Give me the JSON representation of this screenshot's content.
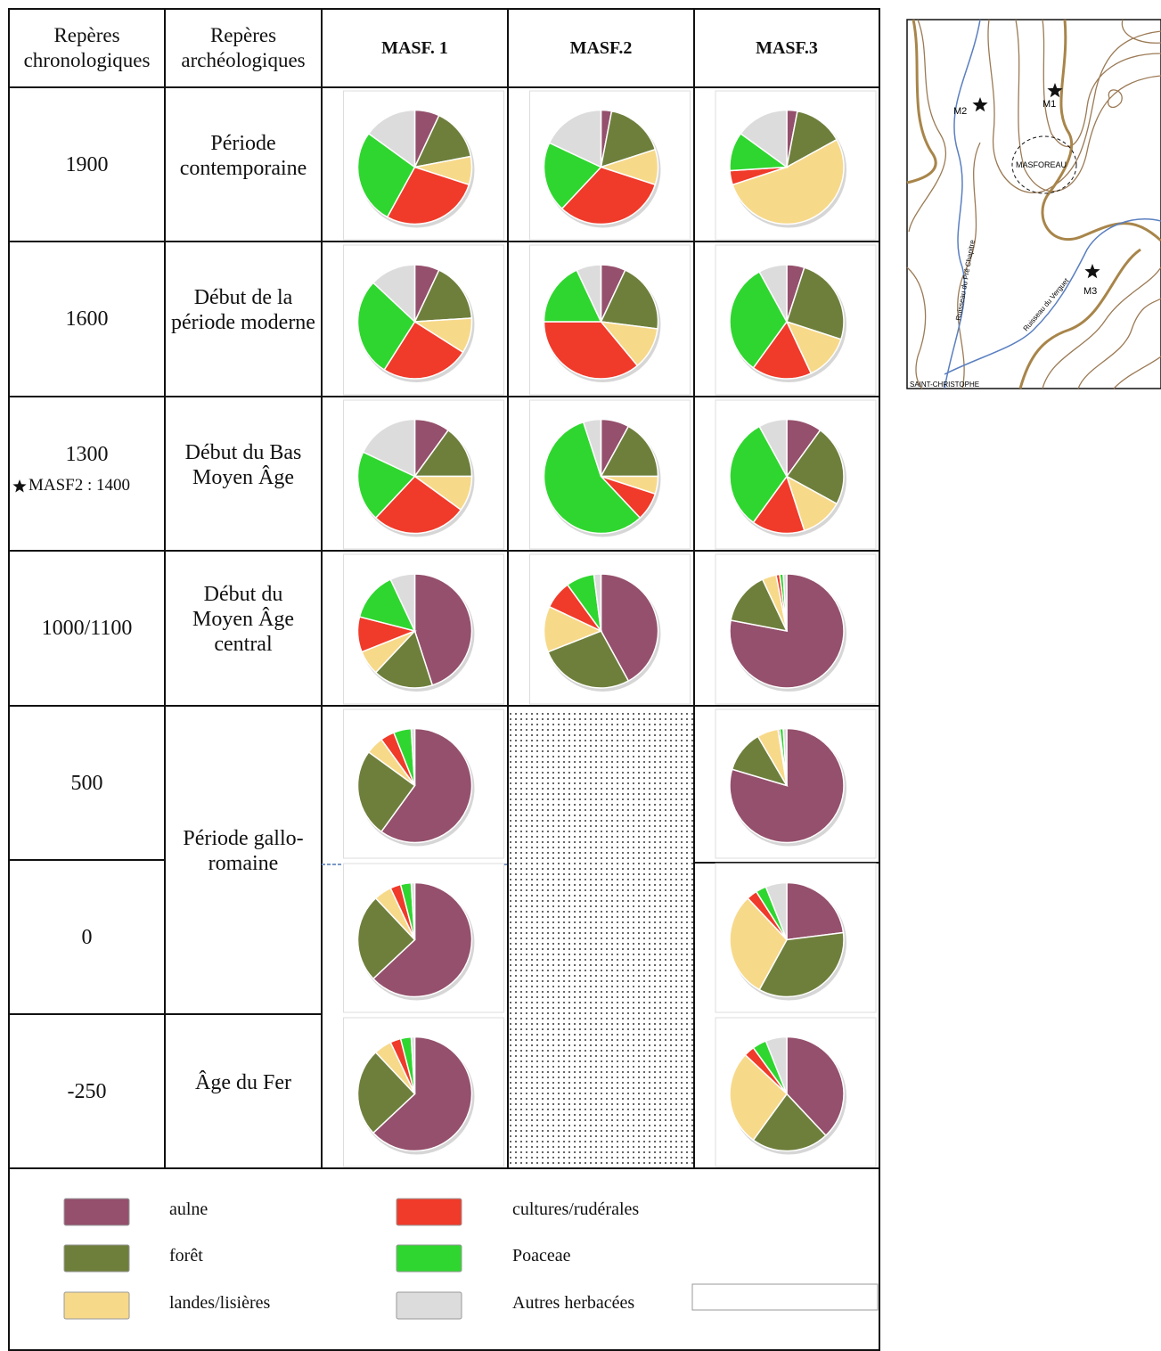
{
  "table": {
    "header": [
      "Repères chronologiques",
      "Repères archéologiques",
      "MASF. 1",
      "MASF.2",
      "MASF.3"
    ],
    "chrono": [
      "1900",
      "1600",
      "1300",
      "1000/1100",
      "500",
      "0",
      "-250"
    ],
    "note": "MASF2 : 1400",
    "periods": [
      "Période contemporaine",
      "Début de la période moderne",
      "Début du Bas Moyen Âge",
      "Début du Moyen Âge central",
      "Période gallo-romaine",
      "Âge du Fer"
    ]
  },
  "legend": [
    {
      "name": "aulne",
      "color": "#94506c"
    },
    {
      "name": "forêt",
      "color": "#6e7f3c"
    },
    {
      "name": "landes/lisières",
      "color": "#f7d98a"
    },
    {
      "name": "cultures/rudérales",
      "color": "#f03a2a"
    },
    {
      "name": "Poaceae",
      "color": "#2fd62f"
    },
    {
      "name": "Autres herbacées",
      "color": "#dcdcdc"
    }
  ],
  "chart_data": [
    {
      "type": "pie",
      "values": [
        7,
        15,
        8,
        28,
        27,
        15
      ]
    },
    {
      "type": "pie",
      "values": [
        3,
        17,
        10,
        32,
        20,
        18
      ]
    },
    {
      "type": "pie",
      "values": [
        3,
        14,
        53,
        4,
        11,
        15
      ]
    },
    {
      "type": "pie",
      "values": [
        7,
        17,
        10,
        25,
        28,
        13
      ]
    },
    {
      "type": "pie",
      "values": [
        7,
        20,
        12,
        36,
        18,
        7
      ]
    },
    {
      "type": "pie",
      "values": [
        5,
        25,
        13,
        17,
        32,
        8
      ]
    },
    {
      "type": "pie",
      "values": [
        10,
        15,
        10,
        27,
        20,
        18
      ]
    },
    {
      "type": "pie",
      "values": [
        8,
        17,
        5,
        8,
        57,
        5
      ]
    },
    {
      "type": "pie",
      "values": [
        10,
        23,
        12,
        15,
        32,
        8
      ]
    },
    {
      "type": "pie",
      "values": [
        45,
        17,
        7,
        10,
        14,
        7
      ]
    },
    {
      "type": "pie",
      "values": [
        42,
        27,
        13,
        8,
        8,
        2
      ]
    },
    {
      "type": "pie",
      "values": [
        78,
        15,
        4,
        1,
        1,
        1
      ]
    },
    {
      "type": "pie",
      "values": [
        60,
        25,
        5,
        4,
        5,
        1
      ]
    },
    {
      "type": "pie",
      "values": [
        80,
        12,
        6,
        0.5,
        1,
        1
      ]
    },
    {
      "type": "pie",
      "values": [
        63,
        25,
        5,
        3,
        3,
        1
      ]
    },
    {
      "type": "pie",
      "values": [
        23,
        35,
        30,
        3,
        3,
        6
      ]
    },
    {
      "type": "pie",
      "values": [
        63,
        25,
        5,
        3,
        3,
        1
      ]
    },
    {
      "type": "pie",
      "values": [
        38,
        22,
        27,
        3,
        4,
        6
      ]
    }
  ],
  "map": {
    "sites": [
      "M1",
      "M2",
      "M3"
    ],
    "place": "MASFOREAU",
    "streams": [
      "Ruisseau du Pré Chapitre",
      "Ruisseau du Verguet"
    ],
    "village": "SAINT-CHRISTOPHE"
  }
}
